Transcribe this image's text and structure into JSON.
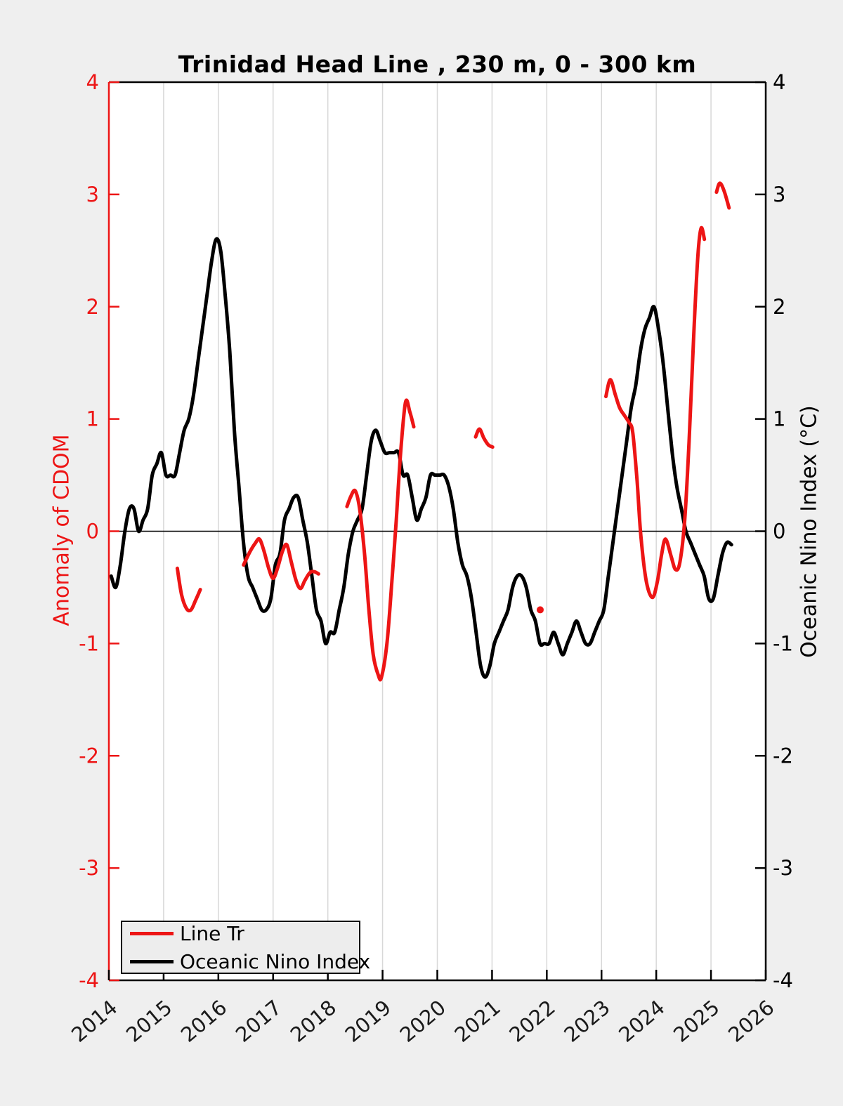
{
  "title": "Trinidad Head Line , 230 m, 0 - 300 km",
  "chart_data": {
    "type": "line",
    "title": "Trinidad Head Line , 230 m, 0 - 300 km",
    "grid": "vertical-only",
    "colors": {
      "figure_background": "#efefef",
      "plot_background": "#ffffff",
      "gridline": "#d8d8d8",
      "red_accent": "#ed1515",
      "black": "#000000"
    },
    "x_axis": {
      "range": [
        2014,
        2026
      ],
      "ticks": [
        2014,
        2015,
        2016,
        2017,
        2018,
        2019,
        2020,
        2021,
        2022,
        2023,
        2024,
        2025,
        2026
      ],
      "tick_rotation_deg": 40
    },
    "left_axis": {
      "label": "Anomaly of CDOM",
      "color": "#ed1515",
      "range": [
        -4,
        4
      ],
      "ticks": [
        4,
        3,
        2,
        1,
        0,
        -1,
        -2,
        -3,
        -4
      ]
    },
    "right_axis": {
      "label": "Oceanic Nino Index (°C)",
      "color": "#000000",
      "range": [
        -4,
        4
      ],
      "ticks": [
        4,
        3,
        2,
        1,
        0,
        -1,
        -2,
        -3,
        -4
      ]
    },
    "zero_line": 0,
    "legend": {
      "position": "bottom-left",
      "entries": [
        "Line Tr",
        "Oceanic Nino Index"
      ]
    },
    "series": [
      {
        "name": "Line Tr",
        "color": "#ed1515",
        "axis": "left",
        "style": "segments-with-gaps",
        "segments": [
          [
            [
              2015.25,
              -0.33
            ],
            [
              2015.33,
              -0.57
            ],
            [
              2015.42,
              -0.69
            ],
            [
              2015.5,
              -0.7
            ],
            [
              2015.58,
              -0.62
            ],
            [
              2015.67,
              -0.52
            ]
          ],
          [
            [
              2016.46,
              -0.3
            ],
            [
              2016.58,
              -0.18
            ],
            [
              2016.67,
              -0.11
            ],
            [
              2016.75,
              -0.07
            ],
            [
              2016.83,
              -0.17
            ],
            [
              2016.92,
              -0.33
            ],
            [
              2017.0,
              -0.42
            ],
            [
              2017.08,
              -0.33
            ],
            [
              2017.17,
              -0.18
            ],
            [
              2017.25,
              -0.12
            ],
            [
              2017.33,
              -0.27
            ],
            [
              2017.42,
              -0.44
            ],
            [
              2017.5,
              -0.51
            ],
            [
              2017.58,
              -0.44
            ],
            [
              2017.67,
              -0.37
            ],
            [
              2017.75,
              -0.36
            ],
            [
              2017.83,
              -0.38
            ]
          ],
          [
            [
              2018.35,
              0.22
            ],
            [
              2018.42,
              0.31
            ],
            [
              2018.5,
              0.36
            ],
            [
              2018.58,
              0.2
            ],
            [
              2018.67,
              -0.2
            ],
            [
              2018.75,
              -0.7
            ],
            [
              2018.83,
              -1.1
            ],
            [
              2018.92,
              -1.28
            ],
            [
              2018.98,
              -1.3
            ],
            [
              2019.08,
              -1.0
            ],
            [
              2019.17,
              -0.45
            ],
            [
              2019.25,
              0.1
            ],
            [
              2019.33,
              0.7
            ],
            [
              2019.42,
              1.15
            ],
            [
              2019.5,
              1.06
            ],
            [
              2019.57,
              0.93
            ]
          ],
          [
            [
              2020.7,
              0.84
            ],
            [
              2020.77,
              0.91
            ],
            [
              2020.85,
              0.83
            ],
            [
              2020.93,
              0.77
            ],
            [
              2021.01,
              0.75
            ]
          ],
          [
            [
              2021.88,
              -0.7
            ]
          ],
          [
            [
              2023.08,
              1.2
            ],
            [
              2023.16,
              1.35
            ],
            [
              2023.25,
              1.22
            ],
            [
              2023.33,
              1.1
            ],
            [
              2023.42,
              1.03
            ],
            [
              2023.5,
              0.97
            ],
            [
              2023.57,
              0.88
            ],
            [
              2023.65,
              0.45
            ],
            [
              2023.72,
              -0.05
            ],
            [
              2023.82,
              -0.45
            ],
            [
              2023.93,
              -0.59
            ],
            [
              2024.02,
              -0.45
            ],
            [
              2024.1,
              -0.2
            ],
            [
              2024.17,
              -0.07
            ],
            [
              2024.27,
              -0.22
            ],
            [
              2024.35,
              -0.34
            ],
            [
              2024.43,
              -0.28
            ],
            [
              2024.52,
              0.1
            ],
            [
              2024.6,
              0.8
            ],
            [
              2024.68,
              1.7
            ],
            [
              2024.76,
              2.45
            ],
            [
              2024.82,
              2.7
            ],
            [
              2024.88,
              2.6
            ]
          ],
          [
            [
              2025.1,
              3.02
            ],
            [
              2025.16,
              3.1
            ],
            [
              2025.24,
              3.03
            ],
            [
              2025.33,
              2.88
            ]
          ]
        ]
      },
      {
        "name": "Oceanic Nino Index",
        "color": "#000000",
        "axis": "right",
        "style": "continuous-monthly",
        "x_start": 2014.042,
        "x_step": 0.083333,
        "values": [
          -0.4,
          -0.5,
          -0.3,
          0.0,
          0.2,
          0.2,
          0.0,
          0.1,
          0.2,
          0.5,
          0.6,
          0.7,
          0.5,
          0.5,
          0.5,
          0.7,
          0.9,
          1.0,
          1.2,
          1.5,
          1.8,
          2.1,
          2.4,
          2.6,
          2.5,
          2.1,
          1.6,
          0.9,
          0.4,
          -0.1,
          -0.4,
          -0.5,
          -0.6,
          -0.7,
          -0.7,
          -0.6,
          -0.3,
          -0.2,
          0.1,
          0.2,
          0.3,
          0.3,
          0.1,
          -0.1,
          -0.4,
          -0.7,
          -0.8,
          -1.0,
          -0.9,
          -0.9,
          -0.7,
          -0.5,
          -0.2,
          0.0,
          0.1,
          0.2,
          0.5,
          0.8,
          0.9,
          0.8,
          0.7,
          0.7,
          0.7,
          0.7,
          0.5,
          0.5,
          0.3,
          0.1,
          0.2,
          0.3,
          0.5,
          0.5,
          0.5,
          0.5,
          0.4,
          0.2,
          -0.1,
          -0.3,
          -0.4,
          -0.6,
          -0.9,
          -1.2,
          -1.3,
          -1.2,
          -1.0,
          -0.9,
          -0.8,
          -0.7,
          -0.5,
          -0.4,
          -0.4,
          -0.5,
          -0.7,
          -0.8,
          -1.0,
          -1.0,
          -1.0,
          -0.9,
          -1.0,
          -1.1,
          -1.0,
          -0.9,
          -0.8,
          -0.9,
          -1.0,
          -1.0,
          -0.9,
          -0.8,
          -0.7,
          -0.4,
          -0.1,
          0.2,
          0.5,
          0.8,
          1.1,
          1.3,
          1.6,
          1.8,
          1.9,
          2.0,
          1.8,
          1.5,
          1.1,
          0.7,
          0.4,
          0.2,
          0.0,
          -0.1,
          -0.2,
          -0.3,
          -0.4,
          -0.6,
          -0.6,
          -0.4,
          -0.2,
          -0.1,
          -0.12
        ]
      }
    ]
  }
}
